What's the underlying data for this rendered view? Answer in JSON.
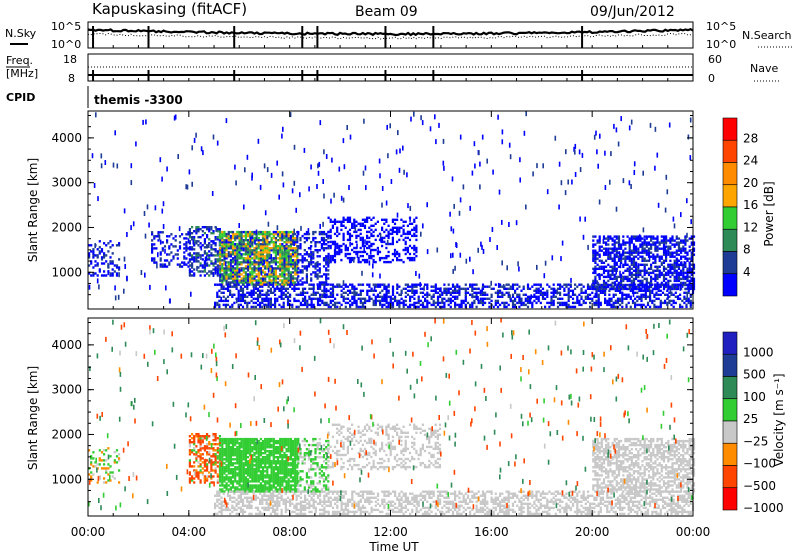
{
  "header": {
    "station": "Kapuskasing (fitACF)",
    "beam": "Beam 09",
    "date": "09/Jun/2012"
  },
  "top_panels": {
    "nsky_label": "N.Sky",
    "nsky_ticks": [
      "10^5",
      "10^0"
    ],
    "nsearch_label": "N.Search",
    "nsearch_ticks": [
      "10^5",
      "10^0"
    ],
    "freq_label_1": "Freq.",
    "freq_label_2": "[MHz]",
    "freq_ticks": [
      "18",
      "8"
    ],
    "nave_label": "Nave",
    "nave_ticks": [
      "60",
      "0"
    ],
    "cpid_label": "CPID",
    "cpid_value": "themis -3300"
  },
  "axes": {
    "ylabel": "Slant Range [km]",
    "yticks": [
      "4000",
      "3000",
      "2000",
      "1000"
    ],
    "xticks": [
      "00:00",
      "04:00",
      "08:00",
      "12:00",
      "16:00",
      "20:00",
      "00:00"
    ],
    "xlabel": "Time UT"
  },
  "colorbars": {
    "power": {
      "label": "Power [dB]",
      "ticks": [
        "28",
        "24",
        "20",
        "16",
        "12",
        "8",
        "4"
      ],
      "colors": [
        "#ff0000",
        "#ff4500",
        "#ff8c00",
        "#ffa500",
        "#32cd32",
        "#2e8b57",
        "#1e3c96",
        "#0000ff"
      ]
    },
    "velocity": {
      "label": "Velocity [m s⁻¹]",
      "ticks": [
        "1000",
        "500",
        "100",
        "25",
        "−25",
        "−100",
        "−500",
        "−1000"
      ],
      "colors": [
        "#2020c0",
        "#1e3c96",
        "#2e8b57",
        "#32cd32",
        "#c8c8c8",
        "#ff8c00",
        "#ff4500",
        "#ff0000"
      ]
    }
  },
  "chart_data": [
    {
      "type": "heatmap",
      "title": "Power",
      "x_range_hours": [
        0,
        24
      ],
      "ylim": [
        180,
        4600
      ],
      "regions": [
        {
          "t": [
            0.0,
            1.2
          ],
          "r": [
            900,
            1700
          ],
          "density": 0.35,
          "value_range": [
            4,
            10
          ]
        },
        {
          "t": [
            2.5,
            4.0
          ],
          "r": [
            1100,
            1900
          ],
          "density": 0.3,
          "value_range": [
            4,
            10
          ]
        },
        {
          "t": [
            4.0,
            5.2
          ],
          "r": [
            900,
            2000
          ],
          "density": 0.5,
          "value_range": [
            4,
            14
          ]
        },
        {
          "t": [
            5.2,
            8.3
          ],
          "r": [
            700,
            1900
          ],
          "density": 0.85,
          "value_range": [
            6,
            24
          ]
        },
        {
          "t": [
            8.3,
            9.5
          ],
          "r": [
            700,
            1900
          ],
          "density": 0.45,
          "value_range": [
            4,
            10
          ]
        },
        {
          "t": [
            9.5,
            13.0
          ],
          "r": [
            1200,
            2200
          ],
          "density": 0.35,
          "value_range": [
            4,
            8
          ]
        },
        {
          "t": [
            5.0,
            24.0
          ],
          "r": [
            200,
            700
          ],
          "density": 0.5,
          "value_range": [
            4,
            10
          ]
        },
        {
          "t": [
            20.0,
            24.0
          ],
          "r": [
            600,
            1800
          ],
          "density": 0.6,
          "value_range": [
            4,
            10
          ]
        }
      ]
    },
    {
      "type": "heatmap",
      "title": "Velocity",
      "x_range_hours": [
        0,
        24
      ],
      "ylim": [
        180,
        4600
      ],
      "regions": [
        {
          "t": [
            0.0,
            1.2
          ],
          "r": [
            900,
            1700
          ],
          "density": 0.25,
          "value_range": [
            -100,
            100
          ]
        },
        {
          "t": [
            4.0,
            5.2
          ],
          "r": [
            900,
            2000
          ],
          "density": 0.5,
          "value_range": [
            -500,
            100
          ]
        },
        {
          "t": [
            5.2,
            8.3
          ],
          "r": [
            700,
            1900
          ],
          "density": 0.85,
          "value_range": [
            25,
            100
          ]
        },
        {
          "t": [
            8.3,
            9.5
          ],
          "r": [
            700,
            1900
          ],
          "density": 0.4,
          "value_range": [
            -25,
            100
          ]
        },
        {
          "t": [
            9.5,
            14.0
          ],
          "r": [
            1200,
            2200
          ],
          "density": 0.3,
          "value_range": [
            -25,
            25
          ]
        },
        {
          "t": [
            5.0,
            24.0
          ],
          "r": [
            200,
            700
          ],
          "density": 0.5,
          "value_range": [
            -25,
            25
          ]
        },
        {
          "t": [
            20.0,
            24.0
          ],
          "r": [
            700,
            1900
          ],
          "density": 0.6,
          "value_range": [
            -25,
            25
          ]
        }
      ]
    }
  ]
}
